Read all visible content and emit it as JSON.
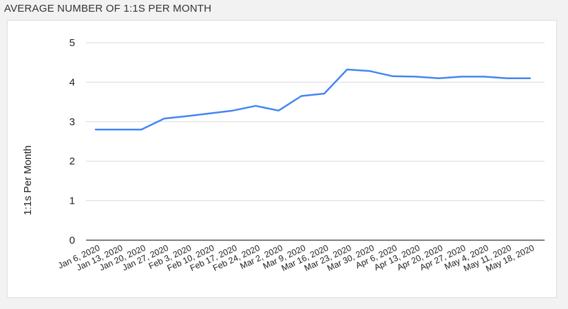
{
  "chart_title": "AVERAGE NUMBER OF 1:1S PER MONTH",
  "chart_data": {
    "type": "line",
    "title": "AVERAGE NUMBER OF 1:1S PER MONTH",
    "xlabel": "",
    "ylabel": "1:1s Per Month",
    "ylim": [
      0,
      5
    ],
    "yticks": [
      "0",
      "1",
      "2",
      "3",
      "4",
      "5"
    ],
    "grid": true,
    "legend": "none",
    "categories": [
      "Jan 6, 2020",
      "Jan 13, 2020",
      "Jan 20, 2020",
      "Jan 27, 2020",
      "Feb 3, 2020",
      "Feb 10, 2020",
      "Feb 17, 2020",
      "Feb 24, 2020",
      "Mar 2, 2020",
      "Mar 9, 2020",
      "Mar 16, 2020",
      "Mar 23, 2020",
      "Mar 30, 2020",
      "Apr 6, 2020",
      "Apr 13, 2020",
      "Apr 20, 2020",
      "Apr 27, 2020",
      "May 4, 2020",
      "May 11, 2020",
      "May 18, 2020"
    ],
    "series": [
      {
        "values": [
          2.8,
          2.8,
          2.8,
          3.08,
          3.14,
          3.21,
          3.28,
          3.4,
          3.28,
          3.65,
          3.71,
          4.32,
          4.28,
          4.15,
          4.14,
          4.1,
          4.14,
          4.14,
          4.1,
          4.1
        ],
        "color": "#4285f4"
      }
    ]
  }
}
